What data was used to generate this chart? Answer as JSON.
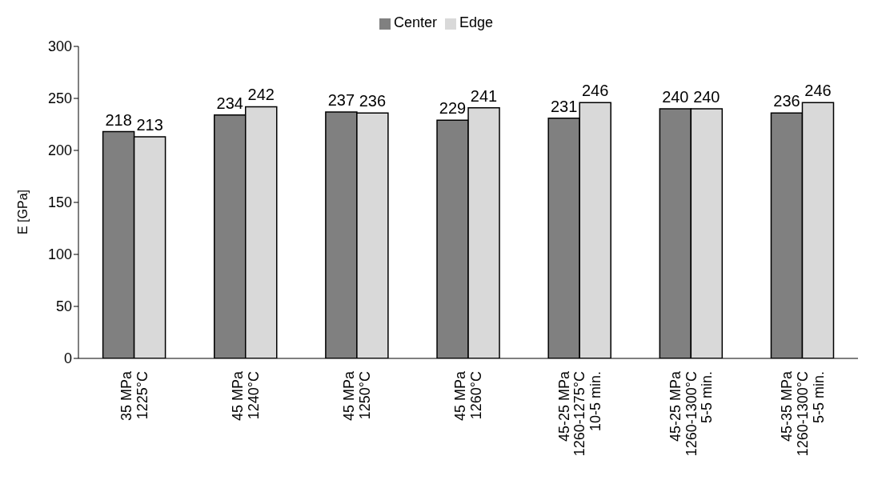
{
  "chart_data": {
    "type": "bar",
    "ylabel": "E [GPa]",
    "categories": [
      "35 MPa\n1225°C",
      "45 MPa\n1240°C",
      "45 MPa\n1250°C",
      "45 MPa\n1260°C",
      "45-25 MPa\n1260-1275°C\n10-5 min.",
      "45-25 MPa\n1260-1300°C\n5-5 min.",
      "45-35 MPa\n1260-1300°C\n5-5 min."
    ],
    "series": [
      {
        "name": "Center",
        "color": "#808080",
        "values": [
          218,
          234,
          237,
          229,
          231,
          240,
          236
        ]
      },
      {
        "name": "Edge",
        "color": "#d9d9d9",
        "values": [
          213,
          242,
          236,
          241,
          246,
          240,
          246
        ]
      }
    ],
    "ylim": [
      0,
      300
    ],
    "yticks": [
      0,
      50,
      100,
      150,
      200,
      250,
      300
    ],
    "data_labels": true,
    "legend": "top",
    "grid": false
  }
}
